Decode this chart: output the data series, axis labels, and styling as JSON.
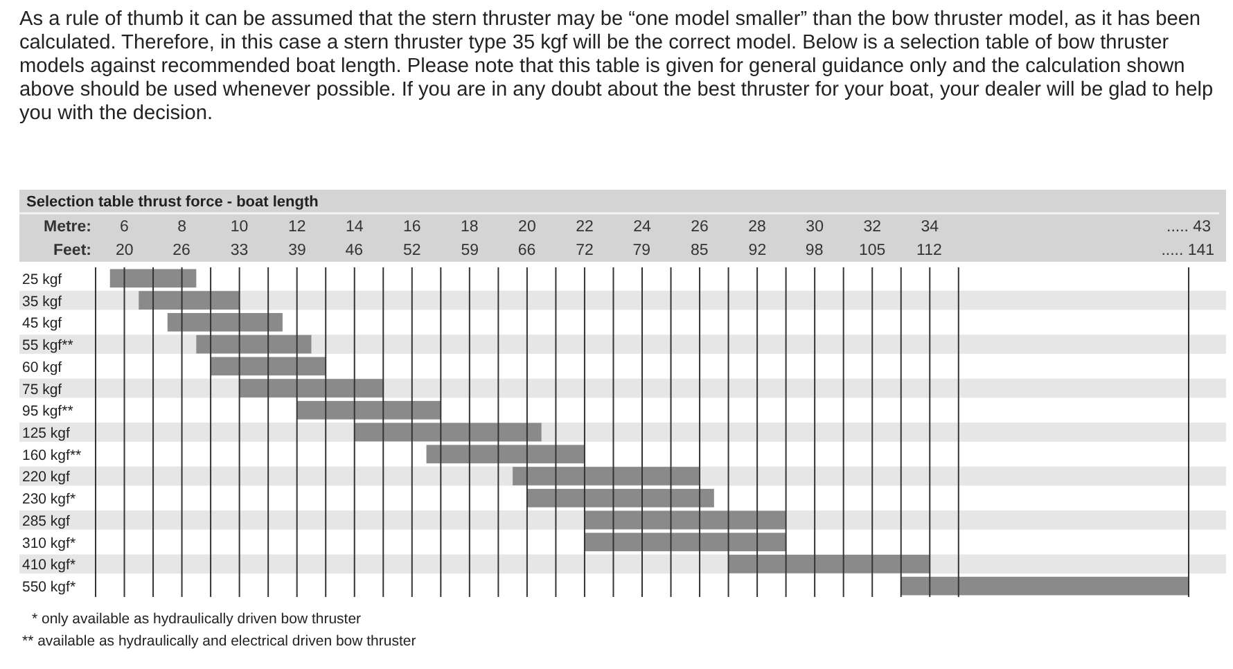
{
  "chart_data": {
    "type": "bar",
    "orientation": "horizontal",
    "title": "Selection table thrust force - boat length",
    "subtitle": "As a rule of thumb it can be assumed that the stern thruster may be “one model smaller” than the bow thruster model, as it has been calculated. Therefore, in this case a stern thruster type 35 kgf will be the correct model. Below is a selection table of bow thruster models against recommended boat length. Please note that this table is given for general guidance only and the calculation shown above should be used whenever possible. If you are in any doubt about the best thruster for your boat, your dealer will be glad to help you with the decision.",
    "xlabel": "Metre:",
    "x2label": "Feet:",
    "categories": [
      "25 kgf",
      "35 kgf",
      "45 kgf",
      "55 kgf**",
      "60 kgf",
      "75 kgf",
      "95 kgf**",
      "125 kgf",
      "160 kgf**",
      "220 kgf",
      "230 kgf*",
      "285 kgf",
      "310 kgf*",
      "410 kgf*",
      "550 kgf*"
    ],
    "base": [
      5.5,
      6.5,
      7.5,
      8.5,
      9,
      10,
      12,
      14,
      16.5,
      19.5,
      20,
      22,
      22,
      27,
      33
    ],
    "values": [
      3,
      3.5,
      4,
      4,
      4,
      5,
      5,
      6.5,
      5.5,
      6.5,
      6.5,
      7,
      7,
      7,
      10
    ],
    "color": "#8a8a8a",
    "xlim": [
      5,
      43
    ],
    "xticks": [
      {
        "value": 5,
        "label": null
      },
      6,
      {
        "value": 7,
        "label": null
      },
      8,
      {
        "value": 9,
        "label": null
      },
      10,
      {
        "value": 11,
        "label": null
      },
      12,
      {
        "value": 13,
        "label": null
      },
      14,
      {
        "value": 15,
        "label": null
      },
      16,
      {
        "value": 17,
        "label": null
      },
      18,
      {
        "value": 19,
        "label": null
      },
      20,
      {
        "value": 21,
        "label": null
      },
      22,
      {
        "value": 23,
        "label": null
      },
      24,
      {
        "value": 25,
        "label": null
      },
      26,
      {
        "value": 27,
        "label": null
      },
      28,
      {
        "value": 29,
        "label": null
      },
      30,
      {
        "value": 31,
        "label": null
      },
      32,
      {
        "value": 33,
        "label": null
      },
      34,
      {
        "value": 35,
        "label": null
      },
      {
        "value": 43,
        "label": "..... 43"
      }
    ],
    "x2lim": [
      16.4,
      141.1
    ],
    "x2ticks": [
      {
        "value": 19.7,
        "label": "20"
      },
      {
        "value": 26.2,
        "label": "26"
      },
      {
        "value": 32.8,
        "label": "33"
      },
      {
        "value": 39.4,
        "label": "39"
      },
      {
        "value": 45.9,
        "label": "46"
      },
      {
        "value": 52.5,
        "label": "52"
      },
      {
        "value": 59.1,
        "label": "59"
      },
      {
        "value": 65.6,
        "label": "66"
      },
      {
        "value": 72.2,
        "label": "72"
      },
      {
        "value": 78.7,
        "label": "79"
      },
      {
        "value": 85.3,
        "label": "85"
      },
      {
        "value": 91.9,
        "label": "92"
      },
      {
        "value": 98.4,
        "label": "98"
      },
      {
        "value": 105,
        "label": "105"
      },
      {
        "value": 111.5,
        "label": "112"
      },
      {
        "value": 141,
        "label": "..... 141"
      }
    ],
    "grid": true,
    "annotations": [
      "* only available as hydraulically driven bow thruster",
      "** available as hydraulically and electrical driven bow thruster"
    ]
  }
}
